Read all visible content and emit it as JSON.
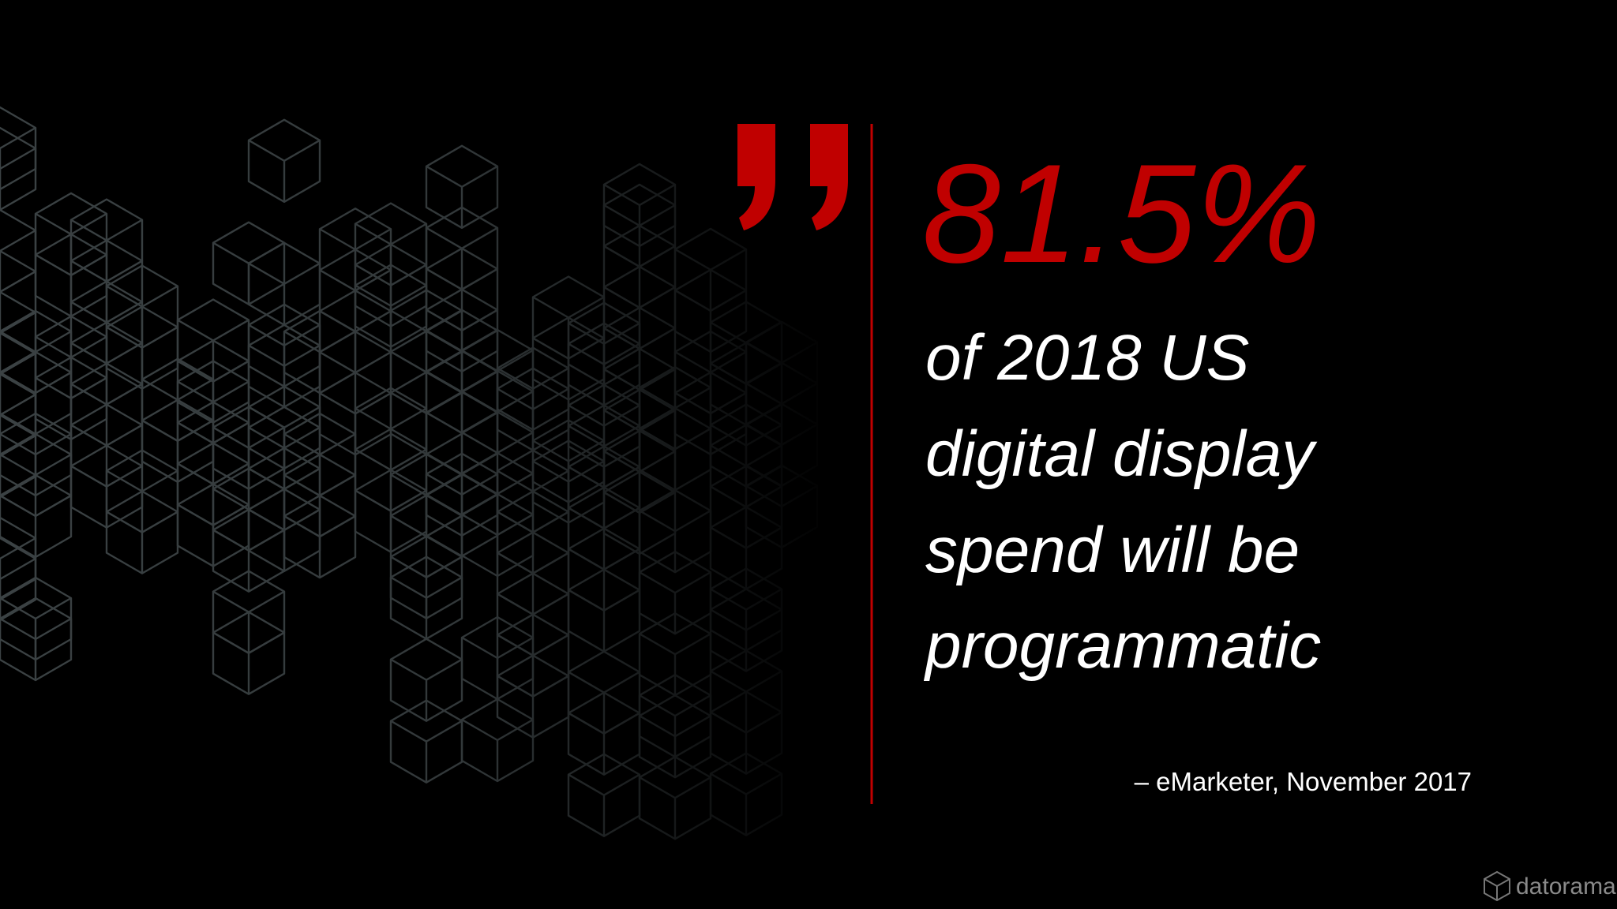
{
  "quote": {
    "stat": "81.5%",
    "lines": [
      "of 2018 US",
      "digital display",
      "spend will be",
      "programmatic"
    ]
  },
  "attribution": "– eMarketer, November 2017",
  "logo": "datorama"
}
